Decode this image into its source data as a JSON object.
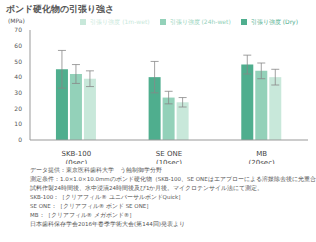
{
  "chart_data": {
    "type": "bar",
    "title": "ボンド硬化物の引張り強さ",
    "y_label": "(MPa)",
    "categories": [
      "SKB-100\n(0sec)",
      "SE ONE\n(10sec)",
      "MB\n(20sec)"
    ],
    "series": [
      {
        "name": "引張り強度 (Dry)",
        "color": "#4fae8e",
        "values": [
          45,
          40,
          48
        ],
        "errors": [
          12,
          10,
          6
        ]
      },
      {
        "name": "引張り強度 (24h-wet)",
        "color": "#93d1b9",
        "values": [
          42,
          27,
          44
        ],
        "errors": [
          6,
          4,
          5
        ]
      },
      {
        "name": "引張り強度 (1m-wet)",
        "color": "#c8e8da",
        "values": [
          39,
          24,
          40
        ],
        "errors": [
          5,
          3,
          5
        ]
      }
    ],
    "ylim": [
      0,
      70
    ],
    "yticks": [
      0,
      10,
      20,
      30,
      40,
      50,
      60,
      70
    ],
    "grid": false,
    "legend": "top-right",
    "notes": [
      "データ提供：東京医科歯科大学　う蝕制御学分野",
      "測定条件：1.0×1.0×10.0mmのボンド硬化物（SKB-100、SE ONEはエアブローによる溶媒除去後に光重合）",
      "試料作製24時間後、水中浸漬24時間後及び1か月後。マイクロテンサイル法にて測定。",
      "SKB-100：［クリアフィル® ユニバーサルボンドQuick］",
      "SE ONE：［クリアフィル® ボンド SE ONE］",
      "MB：［クリアフィル® メガボンド®］",
      "日本歯科保存学会2016年春季学術大会(第144回)発表より"
    ]
  }
}
